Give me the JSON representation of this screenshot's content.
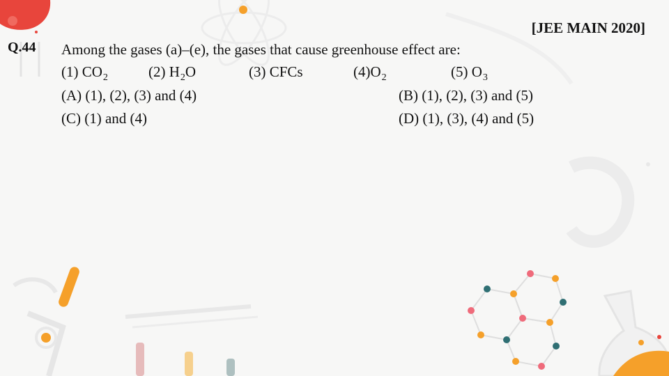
{
  "source": "[JEE MAIN 2020]",
  "question": {
    "number": "Q.44",
    "stem": "Among the gases (a)–(e), the gases that cause greenhouse effect are:",
    "gases": [
      {
        "prefix": "(1) CO",
        "sub": "2"
      },
      {
        "prefix": "(2) H",
        "sub": "2",
        "suffix": "O"
      },
      {
        "prefix": "(3) CFCs"
      },
      {
        "prefix": "(4)O",
        "sub": "2"
      },
      {
        "prefix": "(5) O",
        "sub": "3"
      }
    ],
    "options": {
      "A": "(A) (1), (2), (3) and (4)",
      "B": "(B) (1), (2), (3) and (5)",
      "C": "(C) (1) and (4)",
      "D": "(D) (1), (3), (4) and (5)"
    }
  },
  "theme": {
    "orange": "#f5a02a",
    "red": "#e8453c",
    "teal": "#2f6f73",
    "pink": "#ef6b7b"
  }
}
